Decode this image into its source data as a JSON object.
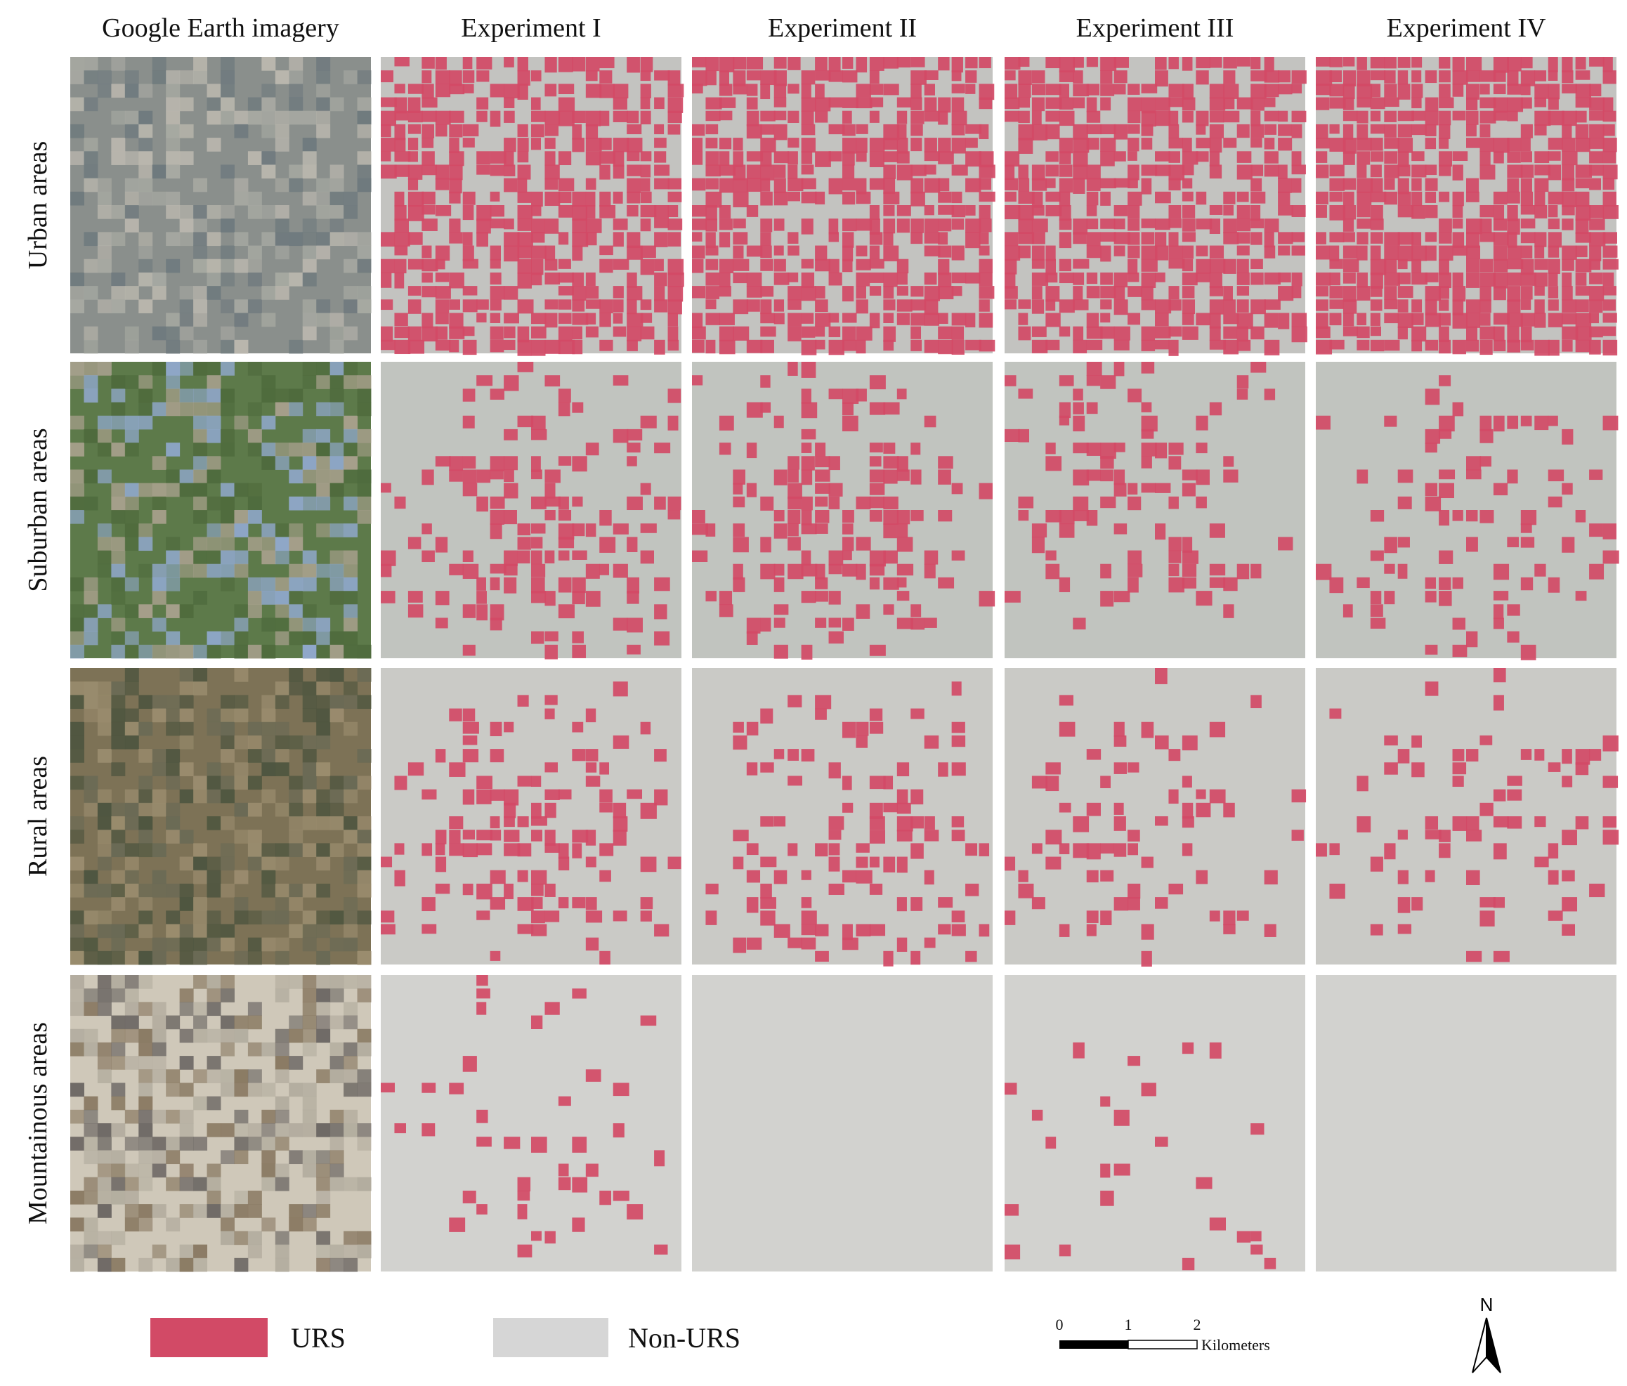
{
  "columns": [
    "Google Earth imagery",
    "Experiment I",
    "Experiment II",
    "Experiment III",
    "Experiment IV"
  ],
  "rows": [
    "Urban areas",
    "Suburban areas",
    "Rural areas",
    "Mountainous  areas"
  ],
  "legend": [
    {
      "label": "URS",
      "color": "#d24a66"
    },
    {
      "label": "Non-URS",
      "color": "#d6d6d6"
    }
  ],
  "scale_bar": {
    "ticks": [
      "0",
      "1",
      "2"
    ],
    "unit": "Kilometers"
  },
  "north_arrow": "N"
}
